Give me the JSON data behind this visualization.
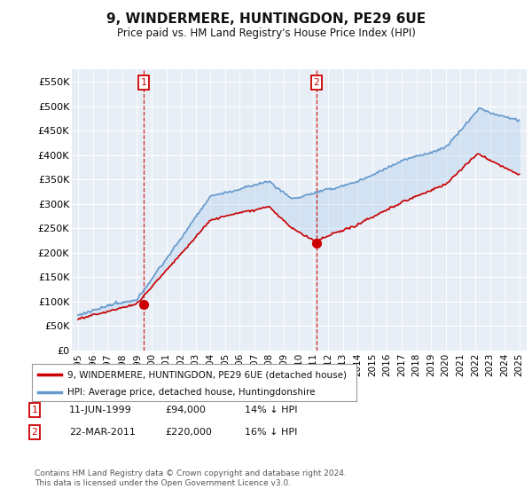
{
  "title": "9, WINDERMERE, HUNTINGDON, PE29 6UE",
  "subtitle": "Price paid vs. HM Land Registry's House Price Index (HPI)",
  "legend_line1": "9, WINDERMERE, HUNTINGDON, PE29 6UE (detached house)",
  "legend_line2": "HPI: Average price, detached house, Huntingdonshire",
  "annotation1_date": "11-JUN-1999",
  "annotation1_price": "£94,000",
  "annotation1_hpi": "14% ↓ HPI",
  "annotation2_date": "22-MAR-2011",
  "annotation2_price": "£220,000",
  "annotation2_hpi": "16% ↓ HPI",
  "footer": "Contains HM Land Registry data © Crown copyright and database right 2024.\nThis data is licensed under the Open Government Licence v3.0.",
  "hpi_color": "#6699cc",
  "price_color": "#cc0000",
  "fill_color": "#ddeeff",
  "annotation_color": "#cc0000",
  "background_color": "#ffffff",
  "chart_bg": "#f0f4f8",
  "ylim": [
    0,
    575000
  ],
  "yticks": [
    0,
    50000,
    100000,
    150000,
    200000,
    250000,
    300000,
    350000,
    400000,
    450000,
    500000,
    550000
  ],
  "ytick_labels": [
    "£0",
    "£50K",
    "£100K",
    "£150K",
    "£200K",
    "£250K",
    "£300K",
    "£350K",
    "£400K",
    "£450K",
    "£500K",
    "£550K"
  ],
  "ann1_x_year": 1999.46,
  "ann1_y": 94000,
  "ann2_x_year": 2011.21,
  "ann2_y": 220000,
  "xlim_start": 1994.58,
  "xlim_end": 2025.5
}
